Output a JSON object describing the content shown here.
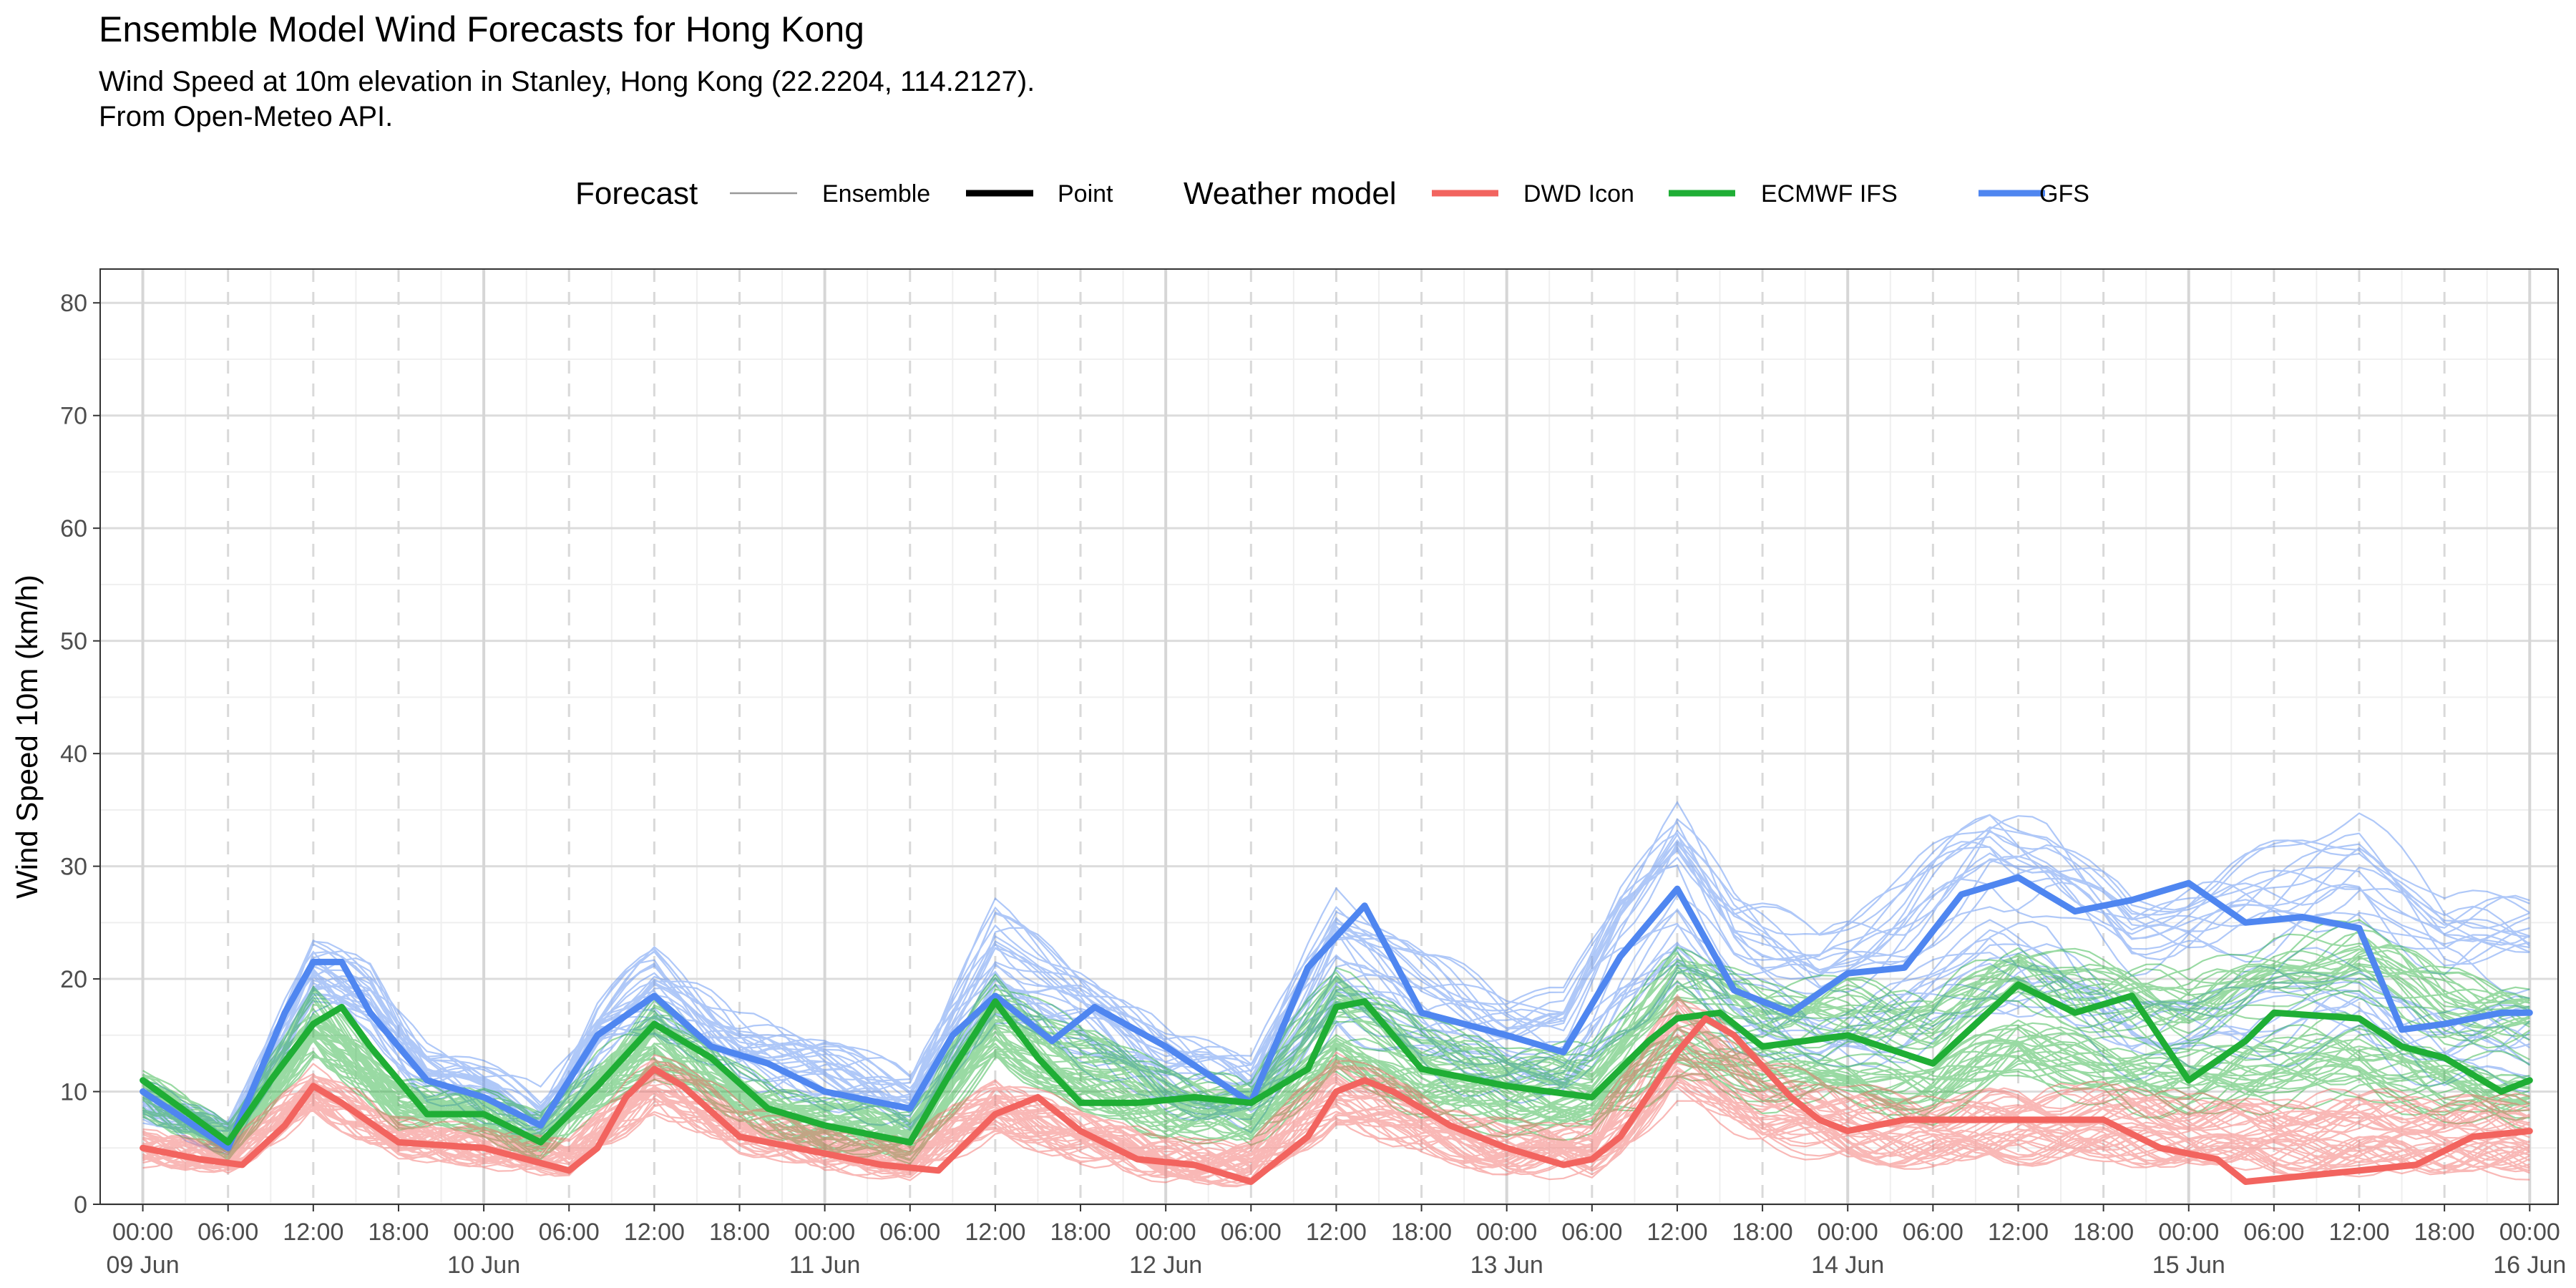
{
  "chart_data": {
    "type": "line",
    "title": "Ensemble Model Wind Forecasts for Hong Kong",
    "subtitle_lines": [
      "Wind Speed at 10m elevation in Stanley, Hong Kong (22.2204, 114.2127).",
      "From Open-Meteo API."
    ],
    "xlabel": "",
    "ylabel": "Wind Speed 10m (km/h)",
    "ylim": [
      0,
      83
    ],
    "y_ticks": [
      0,
      10,
      20,
      30,
      40,
      50,
      60,
      70,
      80
    ],
    "x_unit": "hours since 09 Jun 00:00",
    "xlim": [
      -3,
      170
    ],
    "x_ticks": [
      {
        "h": 0,
        "time": "00:00",
        "date": "09 Jun"
      },
      {
        "h": 6,
        "time": "06:00",
        "date": ""
      },
      {
        "h": 12,
        "time": "12:00",
        "date": ""
      },
      {
        "h": 18,
        "time": "18:00",
        "date": ""
      },
      {
        "h": 24,
        "time": "00:00",
        "date": "10 Jun"
      },
      {
        "h": 30,
        "time": "06:00",
        "date": ""
      },
      {
        "h": 36,
        "time": "12:00",
        "date": ""
      },
      {
        "h": 42,
        "time": "18:00",
        "date": ""
      },
      {
        "h": 48,
        "time": "00:00",
        "date": "11 Jun"
      },
      {
        "h": 54,
        "time": "06:00",
        "date": ""
      },
      {
        "h": 60,
        "time": "12:00",
        "date": ""
      },
      {
        "h": 66,
        "time": "18:00",
        "date": ""
      },
      {
        "h": 72,
        "time": "00:00",
        "date": "12 Jun"
      },
      {
        "h": 78,
        "time": "06:00",
        "date": ""
      },
      {
        "h": 84,
        "time": "12:00",
        "date": ""
      },
      {
        "h": 90,
        "time": "18:00",
        "date": ""
      },
      {
        "h": 96,
        "time": "00:00",
        "date": "13 Jun"
      },
      {
        "h": 102,
        "time": "06:00",
        "date": ""
      },
      {
        "h": 108,
        "time": "12:00",
        "date": ""
      },
      {
        "h": 114,
        "time": "18:00",
        "date": ""
      },
      {
        "h": 120,
        "time": "00:00",
        "date": "14 Jun"
      },
      {
        "h": 126,
        "time": "06:00",
        "date": ""
      },
      {
        "h": 132,
        "time": "12:00",
        "date": ""
      },
      {
        "h": 138,
        "time": "18:00",
        "date": ""
      },
      {
        "h": 144,
        "time": "00:00",
        "date": "15 Jun"
      },
      {
        "h": 150,
        "time": "06:00",
        "date": ""
      },
      {
        "h": 156,
        "time": "12:00",
        "date": ""
      },
      {
        "h": 162,
        "time": "18:00",
        "date": ""
      },
      {
        "h": 168,
        "time": "00:00",
        "date": "16 Jun"
      }
    ],
    "grid": true,
    "legend_position": "top",
    "legend": {
      "forecast_title": "Forecast",
      "forecast_items": [
        {
          "label": "Ensemble",
          "style": "thin"
        },
        {
          "label": "Point",
          "style": "thick"
        }
      ],
      "model_title": "Weather model",
      "model_items": [
        {
          "label": "DWD Icon",
          "color": "#f2645f"
        },
        {
          "label": "ECMWF IFS",
          "color": "#1fae35"
        },
        {
          "label": "GFS",
          "color": "#4f86f0"
        }
      ]
    },
    "series": [
      {
        "model": "GFS",
        "color": "#4f86f0",
        "forecast": "Point",
        "x": [
          0,
          6,
          10,
          12,
          14,
          16,
          20,
          24,
          28,
          32,
          36,
          40,
          44,
          48,
          54,
          57,
          60,
          64,
          67,
          72,
          78,
          82,
          86,
          90,
          96,
          100,
          104,
          108,
          112,
          116,
          120,
          124,
          128,
          132,
          136,
          140,
          144,
          148,
          152,
          156,
          159,
          162,
          166,
          168
        ],
        "values": [
          10,
          5,
          17,
          21.5,
          21.5,
          17,
          11,
          9.5,
          7,
          15,
          18.5,
          14,
          12.5,
          10,
          8.5,
          15,
          18.5,
          14.5,
          17.5,
          14,
          9,
          21,
          26.5,
          17,
          15,
          13.5,
          22,
          28,
          19,
          17,
          20.5,
          21,
          27.5,
          29,
          26,
          27,
          28.5,
          25,
          25.5,
          24.5,
          15.5,
          16,
          17,
          17
        ]
      },
      {
        "model": "ECMWF IFS",
        "color": "#1fae35",
        "forecast": "Point",
        "x": [
          0,
          6,
          9,
          12,
          14,
          16,
          20,
          24,
          28,
          32,
          36,
          40,
          44,
          48,
          54,
          57,
          60,
          63,
          66,
          70,
          74,
          78,
          82,
          84,
          86,
          90,
          96,
          102,
          106,
          108,
          111,
          114,
          120,
          126,
          132,
          136,
          140,
          144,
          148,
          150,
          156,
          159,
          162,
          166,
          168
        ],
        "values": [
          11,
          5.5,
          11,
          16,
          17.5,
          14,
          8,
          8,
          5.5,
          10.5,
          16,
          13,
          8.5,
          7,
          5.5,
          12,
          18,
          13,
          9,
          9,
          9.5,
          9,
          12,
          17.5,
          18,
          12,
          10.5,
          9.5,
          14.5,
          16.5,
          17,
          14,
          15,
          12.5,
          19.5,
          17,
          18.5,
          11,
          14.5,
          17,
          16.5,
          14,
          13,
          10,
          11
        ]
      },
      {
        "model": "DWD Icon",
        "color": "#f2645f",
        "forecast": "Point",
        "x": [
          0,
          4,
          7,
          10,
          12,
          14,
          18,
          24,
          30,
          32,
          34,
          36,
          38,
          42,
          48,
          52,
          56,
          60,
          63,
          66,
          70,
          74,
          78,
          82,
          84,
          86,
          88,
          92,
          96,
          100,
          102,
          104,
          108,
          110,
          112,
          116,
          118,
          120,
          124,
          128,
          132,
          138,
          142,
          146,
          148,
          152,
          156,
          160,
          164,
          168
        ],
        "values": [
          5,
          4,
          3.5,
          7,
          10.5,
          9,
          5.5,
          5,
          3,
          5,
          9.5,
          12,
          10.5,
          6,
          4.5,
          3.5,
          3,
          8,
          9.5,
          6.5,
          4,
          3.5,
          2,
          6,
          10,
          11,
          10,
          7,
          5,
          3.5,
          4,
          6,
          13.5,
          16.5,
          15,
          9.5,
          7.5,
          6.5,
          7.5,
          7.5,
          7.5,
          7.5,
          5,
          4,
          2,
          2.5,
          3,
          3.5,
          6,
          6.5
        ]
      },
      {
        "model": "GFS",
        "color": "#4f86f0",
        "forecast": "Ensemble",
        "count": 30,
        "mean_x": [
          0,
          6,
          12,
          16,
          20,
          24,
          28,
          32,
          36,
          42,
          48,
          54,
          60,
          66,
          72,
          78,
          84,
          90,
          96,
          100,
          104,
          108,
          112,
          118,
          124,
          130,
          134,
          140,
          146,
          152,
          156,
          162,
          168
        ],
        "mean": [
          9,
          6,
          20,
          18,
          12,
          10,
          8,
          15,
          18.5,
          14,
          12,
          9,
          21,
          17,
          12,
          10,
          22,
          17,
          14,
          14,
          22,
          27,
          21,
          18,
          21,
          26,
          25,
          20,
          21,
          23,
          24,
          19,
          19
        ]
      },
      {
        "model": "ECMWF IFS",
        "color": "#1fae35",
        "forecast": "Ensemble",
        "count": 50,
        "mean_x": [
          0,
          6,
          12,
          18,
          24,
          28,
          32,
          36,
          42,
          48,
          54,
          60,
          66,
          72,
          78,
          84,
          90,
          96,
          102,
          108,
          114,
          120,
          126,
          132,
          138,
          144,
          150,
          156,
          162,
          168
        ],
        "mean": [
          10,
          5.5,
          16,
          9,
          8,
          6,
          10.5,
          15,
          9.5,
          7,
          6,
          16,
          12,
          9,
          8,
          16,
          12,
          10,
          10,
          17,
          14,
          14,
          13,
          17,
          15,
          14,
          16,
          17,
          14,
          13
        ]
      },
      {
        "model": "DWD Icon",
        "color": "#f2645f",
        "forecast": "Ensemble",
        "count": 40,
        "mean_x": [
          0,
          6,
          12,
          18,
          24,
          30,
          36,
          42,
          48,
          54,
          60,
          66,
          72,
          78,
          84,
          90,
          96,
          102,
          108,
          114,
          120,
          126,
          132,
          138,
          144,
          150,
          156,
          162,
          168
        ],
        "mean": [
          5,
          4,
          10,
          6,
          5,
          4,
          11,
          7,
          5,
          4,
          9,
          6,
          4,
          3.5,
          10.5,
          7,
          5,
          5,
          14,
          9,
          7,
          6.5,
          7,
          7,
          6.5,
          6,
          6.5,
          6,
          6
        ]
      }
    ]
  }
}
